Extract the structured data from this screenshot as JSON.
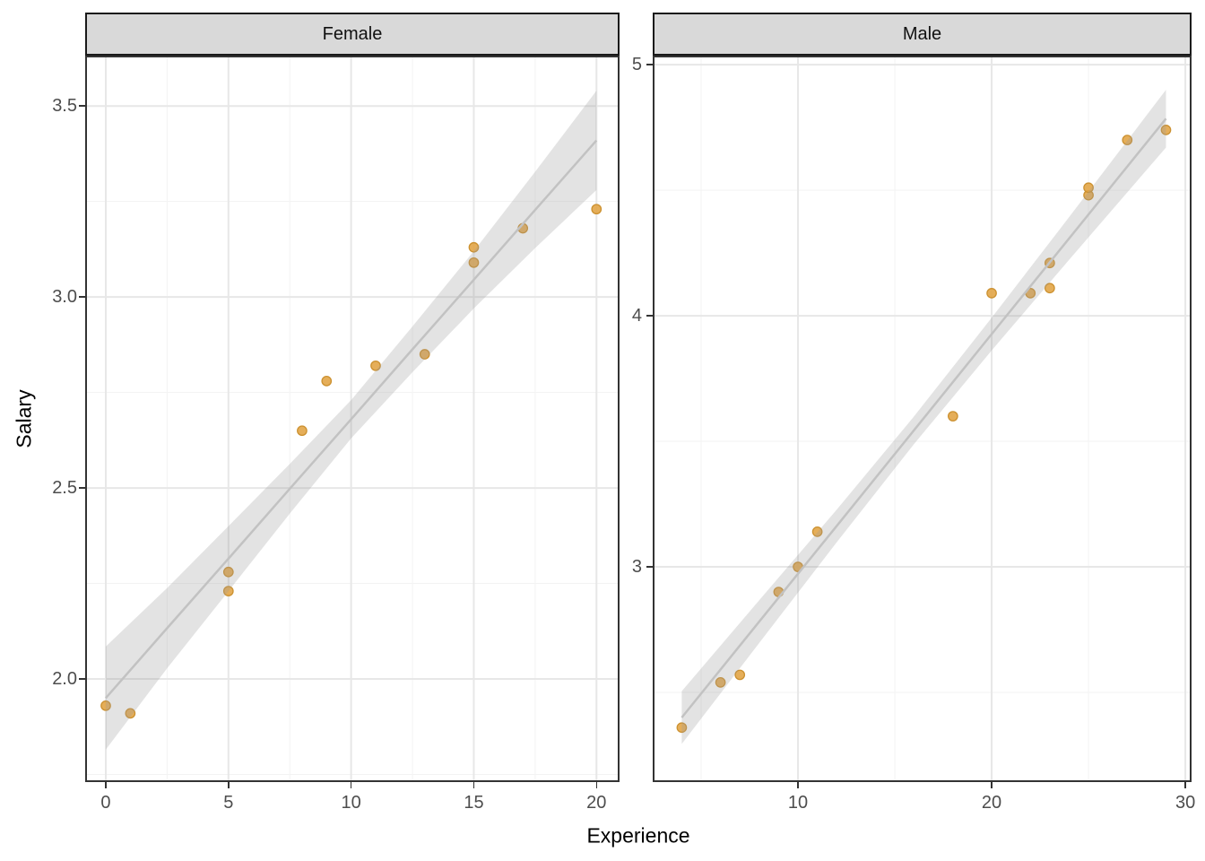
{
  "chart_data": {
    "type": "scatter",
    "title": "",
    "xlabel": "Experience",
    "ylabel": "Salary",
    "facets": [
      "Female",
      "Male"
    ],
    "legend": "none",
    "grid": "on",
    "style": {
      "point_fill": "#E2A547",
      "point_stroke": "#CC9130",
      "smooth_line_color": "#C2C2C2",
      "confidence_band_color": "#999999",
      "confidence_band_opacity": 0.28,
      "grid_major_color": "#E7E7E7",
      "grid_minor_color": "#F3F3F3",
      "panel_border_color": "#333333",
      "strip_fill": "#D9D9D9",
      "tick_label_color": "#4D4D4D",
      "axis_title_color": "#000000"
    },
    "panels": [
      {
        "label": "Female",
        "xlim": [
          -0.84,
          20.94
        ],
        "ylim": [
          1.73,
          3.632
        ],
        "x_ticks": [
          {
            "v": 0,
            "label": "0"
          },
          {
            "v": 5,
            "label": "5"
          },
          {
            "v": 10,
            "label": "10"
          },
          {
            "v": 15,
            "label": "15"
          },
          {
            "v": 20,
            "label": "20"
          }
        ],
        "x_minor": [
          2.5,
          7.5,
          12.5,
          17.5
        ],
        "y_ticks": [
          {
            "v": 3.5,
            "label": "3.5"
          },
          {
            "v": 3.0,
            "label": "3.0"
          },
          {
            "v": 2.5,
            "label": "2.5"
          },
          {
            "v": 2.0,
            "label": "2.0"
          }
        ],
        "y_minor": [
          3.25,
          2.75,
          2.25,
          1.75
        ],
        "points": [
          [
            0,
            1.93
          ],
          [
            1,
            1.91
          ],
          [
            5,
            2.23
          ],
          [
            5,
            2.28
          ],
          [
            8,
            2.65
          ],
          [
            9,
            2.78
          ],
          [
            11,
            2.82
          ],
          [
            13,
            2.85
          ],
          [
            15,
            3.09
          ],
          [
            15,
            3.13
          ],
          [
            17,
            3.18
          ],
          [
            20,
            3.23
          ]
        ],
        "smooth": {
          "x": [
            0,
            2.5,
            5,
            7.5,
            10,
            12.5,
            15,
            17.5,
            20
          ],
          "fit": [
            1.95,
            2.133,
            2.315,
            2.498,
            2.68,
            2.863,
            3.045,
            3.228,
            3.41
          ],
          "half_width": [
            0.135,
            0.105,
            0.085,
            0.065,
            0.05,
            0.06,
            0.075,
            0.1,
            0.13
          ]
        }
      },
      {
        "label": "Male",
        "xlim": [
          2.5,
          30.32
        ],
        "ylim": [
          2.143,
          5.036
        ],
        "x_ticks": [
          {
            "v": 10,
            "label": "10"
          },
          {
            "v": 20,
            "label": "20"
          },
          {
            "v": 30,
            "label": "30"
          }
        ],
        "x_minor": [
          5,
          15,
          25
        ],
        "y_ticks": [
          {
            "v": 5,
            "label": "5"
          },
          {
            "v": 4,
            "label": "4"
          },
          {
            "v": 3,
            "label": "3"
          }
        ],
        "y_minor": [
          4.5,
          3.5,
          2.5
        ],
        "points": [
          [
            4,
            2.36
          ],
          [
            6,
            2.54
          ],
          [
            7,
            2.57
          ],
          [
            9,
            2.9
          ],
          [
            10,
            3.0
          ],
          [
            11,
            3.14
          ],
          [
            18,
            3.6
          ],
          [
            20,
            4.09
          ],
          [
            22,
            4.09
          ],
          [
            23,
            4.11
          ],
          [
            23,
            4.21
          ],
          [
            25,
            4.48
          ],
          [
            25,
            4.51
          ],
          [
            27,
            4.7
          ],
          [
            29,
            4.74
          ]
        ],
        "smooth": {
          "x": [
            4,
            8,
            12,
            16,
            20,
            24,
            29
          ],
          "fit": [
            2.4,
            2.782,
            3.163,
            3.545,
            3.927,
            4.308,
            4.785
          ],
          "half_width": [
            0.105,
            0.085,
            0.065,
            0.055,
            0.065,
            0.085,
            0.115
          ]
        }
      }
    ]
  }
}
